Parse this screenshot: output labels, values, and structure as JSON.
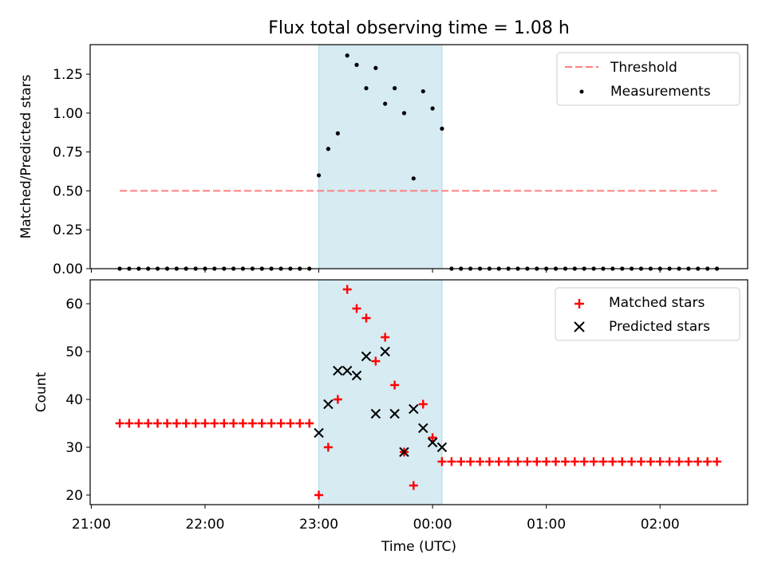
{
  "chart_data": [
    {
      "type": "scatter",
      "title": "Flux total observing time = 1.08 h",
      "ylabel": "Matched/Predicted stars",
      "xlabel": "",
      "ylim": [
        0,
        1.44
      ],
      "yticks": [
        "0.00",
        "0.25",
        "0.50",
        "0.75",
        "1.00",
        "1.25"
      ],
      "grid": false,
      "legend_position": "top-right",
      "highlight_span": {
        "start": 23.0,
        "end": 24.0833
      },
      "threshold": {
        "name": "Threshold",
        "y": 0.5,
        "x_start": 21.25,
        "x_end": 26.5,
        "color": "#ff7f7f"
      },
      "series": [
        {
          "name": "Measurements",
          "color": "#000000",
          "x": [
            21.25,
            21.333,
            21.417,
            21.5,
            21.583,
            21.667,
            21.75,
            21.833,
            21.917,
            22.0,
            22.083,
            22.167,
            22.25,
            22.333,
            22.417,
            22.5,
            22.583,
            22.667,
            22.75,
            22.833,
            22.917,
            23.0,
            23.083,
            23.167,
            23.25,
            23.333,
            23.417,
            23.5,
            23.583,
            23.667,
            23.75,
            23.833,
            23.917,
            24.0,
            24.083,
            24.167,
            24.25,
            24.333,
            24.417,
            24.5,
            24.583,
            24.667,
            24.75,
            24.833,
            24.917,
            25.0,
            25.083,
            25.167,
            25.25,
            25.333,
            25.417,
            25.5,
            25.583,
            25.667,
            25.75,
            25.833,
            25.917,
            26.0,
            26.083,
            26.167,
            26.25,
            26.333,
            26.417,
            26.5
          ],
          "y": [
            0,
            0,
            0,
            0,
            0,
            0,
            0,
            0,
            0,
            0,
            0,
            0,
            0,
            0,
            0,
            0,
            0,
            0,
            0,
            0,
            0,
            0.6,
            0.77,
            0.87,
            1.37,
            1.31,
            1.16,
            1.29,
            1.06,
            1.16,
            1.0,
            0.58,
            1.14,
            1.03,
            0.9,
            0,
            0,
            0,
            0,
            0,
            0,
            0,
            0,
            0,
            0,
            0,
            0,
            0,
            0,
            0,
            0,
            0,
            0,
            0,
            0,
            0,
            0,
            0,
            0,
            0,
            0,
            0,
            0,
            0
          ]
        }
      ]
    },
    {
      "type": "scatter",
      "title": "",
      "xlabel": "Time (UTC)",
      "ylabel": "Count",
      "xlim": [
        20.99,
        26.77
      ],
      "ylim": [
        18,
        65
      ],
      "yticks": [
        "20",
        "30",
        "40",
        "50",
        "60"
      ],
      "xticks": [
        {
          "value": 21,
          "label": "21:00"
        },
        {
          "value": 22,
          "label": "22:00"
        },
        {
          "value": 23,
          "label": "23:00"
        },
        {
          "value": 24,
          "label": "00:00"
        },
        {
          "value": 25,
          "label": "01:00"
        },
        {
          "value": 26,
          "label": "02:00"
        }
      ],
      "grid": false,
      "legend_position": "top-right",
      "highlight_span": {
        "start": 23.0,
        "end": 24.0833
      },
      "series": [
        {
          "name": "Matched stars",
          "color": "#ff0000",
          "marker": "plus",
          "x": [
            21.25,
            21.333,
            21.417,
            21.5,
            21.583,
            21.667,
            21.75,
            21.833,
            21.917,
            22.0,
            22.083,
            22.167,
            22.25,
            22.333,
            22.417,
            22.5,
            22.583,
            22.667,
            22.75,
            22.833,
            22.917,
            23.0,
            23.083,
            23.167,
            23.25,
            23.333,
            23.417,
            23.5,
            23.583,
            23.667,
            23.75,
            23.833,
            23.917,
            24.0,
            24.083,
            24.167,
            24.25,
            24.333,
            24.417,
            24.5,
            24.583,
            24.667,
            24.75,
            24.833,
            24.917,
            25.0,
            25.083,
            25.167,
            25.25,
            25.333,
            25.417,
            25.5,
            25.583,
            25.667,
            25.75,
            25.833,
            25.917,
            26.0,
            26.083,
            26.167,
            26.25,
            26.333,
            26.417,
            26.5
          ],
          "y": [
            35,
            35,
            35,
            35,
            35,
            35,
            35,
            35,
            35,
            35,
            35,
            35,
            35,
            35,
            35,
            35,
            35,
            35,
            35,
            35,
            35,
            20,
            30,
            40,
            63,
            59,
            57,
            48,
            53,
            43,
            29,
            22,
            39,
            32,
            27,
            27,
            27,
            27,
            27,
            27,
            27,
            27,
            27,
            27,
            27,
            27,
            27,
            27,
            27,
            27,
            27,
            27,
            27,
            27,
            27,
            27,
            27,
            27,
            27,
            27,
            27,
            27,
            27,
            27
          ]
        },
        {
          "name": "Predicted stars",
          "color": "#000000",
          "marker": "x",
          "x": [
            23.0,
            23.083,
            23.167,
            23.25,
            23.333,
            23.417,
            23.5,
            23.583,
            23.667,
            23.75,
            23.833,
            23.917,
            24.0,
            24.083
          ],
          "y": [
            33,
            39,
            46,
            46,
            45,
            49,
            37,
            50,
            37,
            29,
            38,
            34,
            31,
            30
          ]
        }
      ]
    }
  ]
}
